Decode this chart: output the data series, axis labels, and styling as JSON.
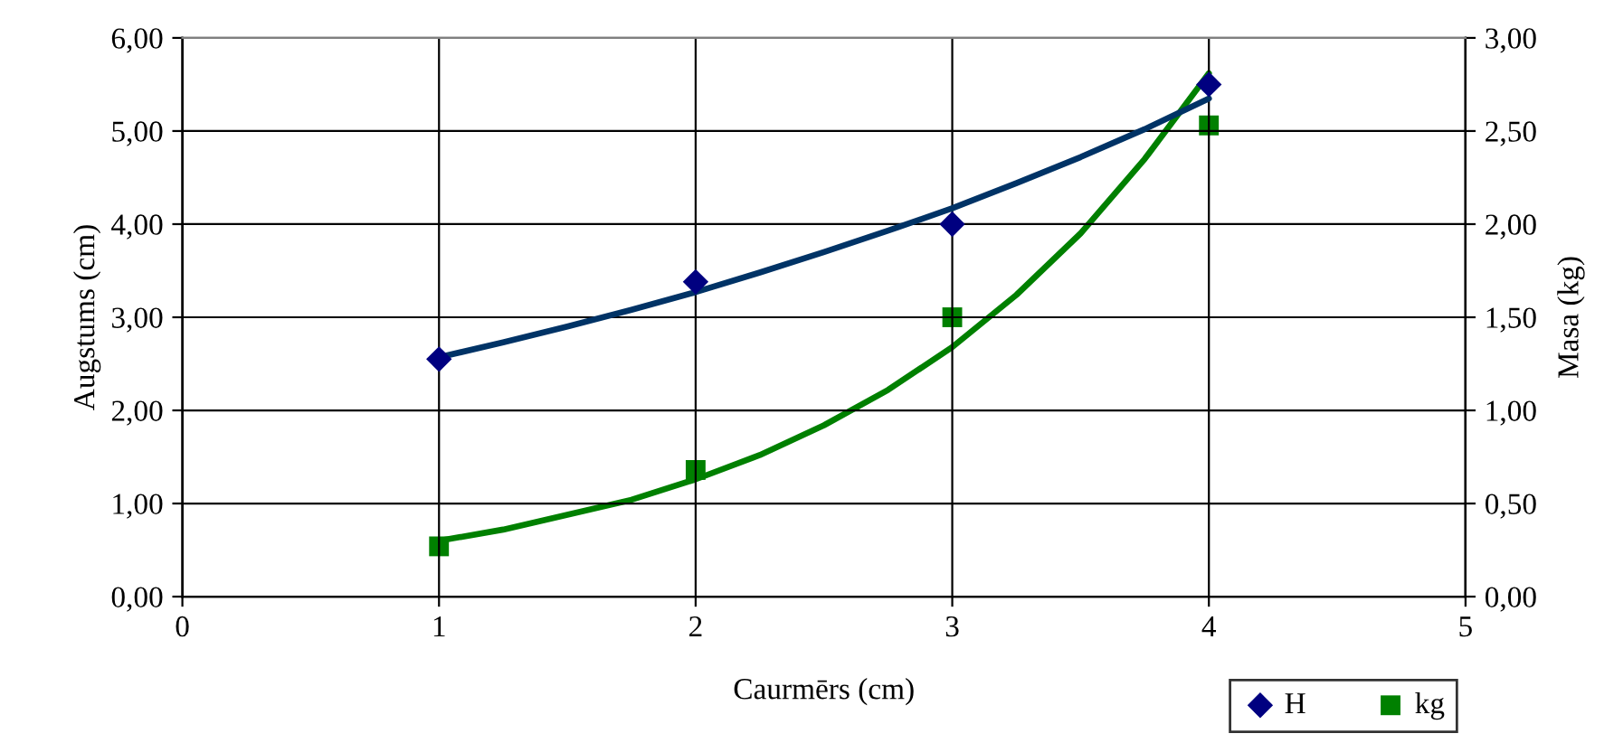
{
  "chart_data": {
    "type": "scatter",
    "xlabel": "Caurmērs (cm)",
    "ylabel": "Augstums (cm)",
    "y2label": "Masa (kg)",
    "xlim": [
      0,
      5
    ],
    "xticks": [
      0,
      1,
      2,
      3,
      4,
      5
    ],
    "ylim": [
      0,
      6
    ],
    "yticks": [
      {
        "value": 0,
        "label": "0,00"
      },
      {
        "value": 1,
        "label": "1,00"
      },
      {
        "value": 2,
        "label": "2,00"
      },
      {
        "value": 3,
        "label": "3,00"
      },
      {
        "value": 4,
        "label": "4,00"
      },
      {
        "value": 5,
        "label": "5,00"
      },
      {
        "value": 6,
        "label": "6,00"
      }
    ],
    "y2lim": [
      0,
      3
    ],
    "y2ticks": [
      {
        "value": 0,
        "label": "0,00"
      },
      {
        "value": 0.5,
        "label": "0,50"
      },
      {
        "value": 1,
        "label": "1,00"
      },
      {
        "value": 1.5,
        "label": "1,50"
      },
      {
        "value": 2,
        "label": "2,00"
      },
      {
        "value": 2.5,
        "label": "2,50"
      },
      {
        "value": 3,
        "label": "3,00"
      }
    ],
    "grid": true,
    "legend": "bottom right",
    "series": [
      {
        "type": "line",
        "color": "#003366",
        "marker": "none",
        "line_style": "solid",
        "x": [
          1,
          1.25,
          1.5,
          1.75,
          2,
          2.25,
          2.5,
          2.75,
          3,
          3.25,
          3.5,
          3.75,
          4
        ],
        "values": [
          2.57,
          2.73,
          2.9,
          3.08,
          3.27,
          3.48,
          3.7,
          3.93,
          4.17,
          4.44,
          4.72,
          5.02,
          5.35
        ]
      },
      {
        "type": "line",
        "color": "#008000",
        "marker": "none",
        "line_style": "solid",
        "axis": "y2",
        "x": [
          1,
          1.25,
          1.5,
          1.75,
          2,
          2.25,
          2.5,
          2.75,
          3,
          3.25,
          3.5,
          3.75,
          4
        ],
        "values": [
          0.3,
          0.36,
          0.44,
          0.52,
          0.63,
          0.76,
          0.92,
          1.11,
          1.34,
          1.62,
          1.95,
          2.35,
          2.81
        ]
      },
      {
        "name": "H",
        "marker": "diamond",
        "color": "#000080",
        "x": [
          1,
          2,
          3,
          4
        ],
        "values": [
          2.55,
          3.38,
          4.0,
          5.5
        ]
      },
      {
        "name": "kg",
        "marker": "square",
        "color": "#008000",
        "axis": "y2",
        "x": [
          1,
          2,
          3,
          4
        ],
        "values": [
          0.27,
          0.68,
          1.5,
          2.53
        ]
      }
    ]
  }
}
